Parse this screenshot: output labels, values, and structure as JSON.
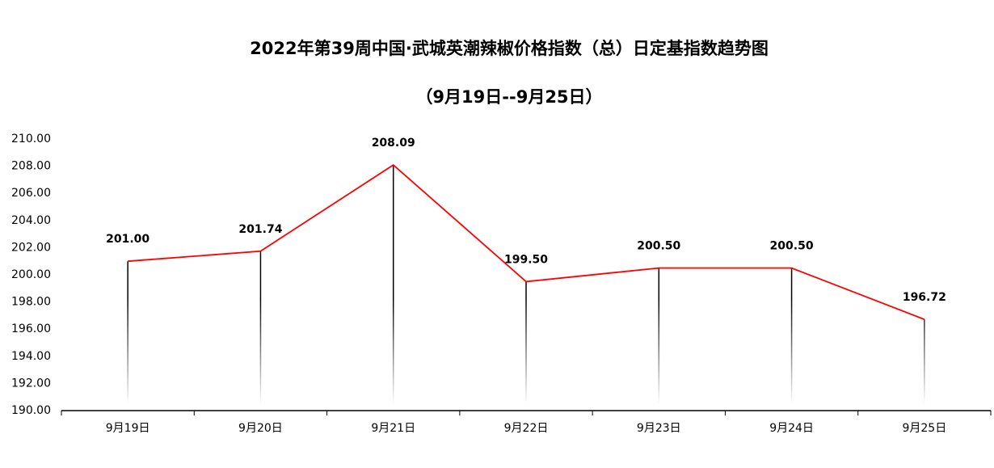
{
  "chart_data": {
    "type": "line",
    "title": "2022年第39周中国·武城英潮辣椒价格指数（总）日定基指数趋势图",
    "subtitle": "（9月19日--9月25日）",
    "categories": [
      "9月19日",
      "9月20日",
      "9月21日",
      "9月22日",
      "9月23日",
      "9月24日",
      "9月25日"
    ],
    "values": [
      201.0,
      201.74,
      208.09,
      199.5,
      200.5,
      200.5,
      196.72
    ],
    "value_labels": [
      "201.00",
      "201.74",
      "208.09",
      "199.50",
      "200.50",
      "200.50",
      "196.72"
    ],
    "color": "#ff0000",
    "ylim": [
      190,
      210
    ],
    "yticks": [
      {
        "value": 190,
        "label": "190.00"
      },
      {
        "value": 192,
        "label": "192.00"
      },
      {
        "value": 194,
        "label": "194.00"
      },
      {
        "value": 196,
        "label": "196.00"
      },
      {
        "value": 198,
        "label": "198.00"
      },
      {
        "value": 200,
        "label": "200.00"
      },
      {
        "value": 202,
        "label": "202.00"
      },
      {
        "value": 204,
        "label": "204.00"
      },
      {
        "value": 206,
        "label": "206.00"
      },
      {
        "value": 208,
        "label": "208.00"
      },
      {
        "value": 210,
        "label": "210.00"
      }
    ],
    "grid": false
  }
}
